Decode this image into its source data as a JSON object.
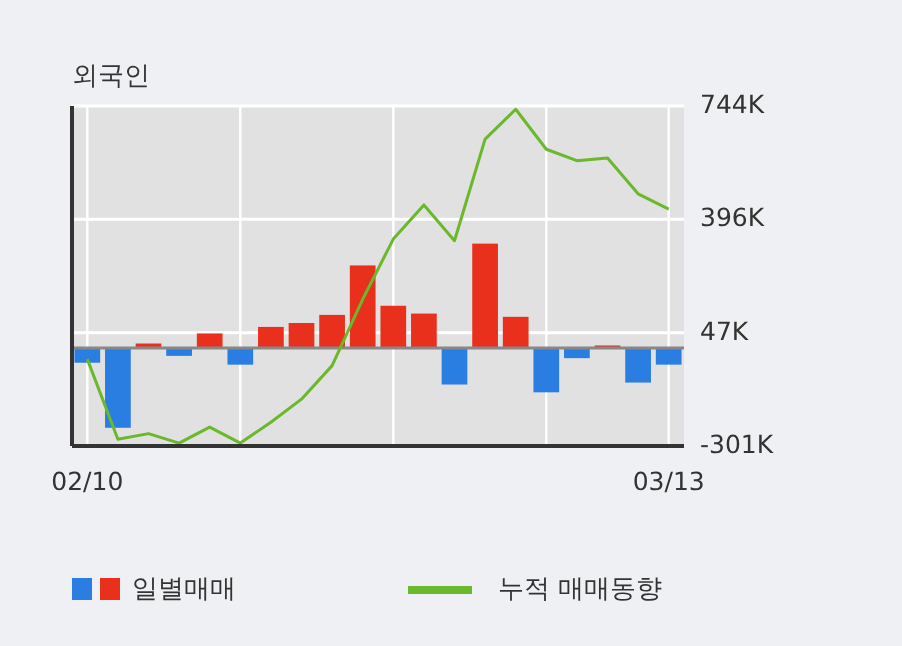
{
  "chart_data": {
    "type": "bar",
    "title": "외국인",
    "categories": [
      "02/10",
      null,
      null,
      null,
      null,
      null,
      null,
      null,
      null,
      null,
      null,
      null,
      null,
      null,
      null,
      null,
      null,
      null,
      null,
      "03/13"
    ],
    "series": [
      {
        "name": "일별매매",
        "colors": [
          "#2a7de1",
          "#2a7de1",
          "#e8301c",
          "#2a7de1",
          "#e8301c",
          "#2a7de1",
          "#e8301c",
          "#e8301c",
          "#e8301c",
          "#e8301c",
          "#e8301c",
          "#e8301c",
          "#2a7de1",
          "#e8301c",
          "#e8301c",
          "#2a7de1",
          "#2a7de1",
          "#e8301c",
          "#2a7de1",
          "#2a7de1"
        ],
        "values": [
          -45,
          -245,
          14,
          -24,
          45,
          -51,
          65,
          77,
          102,
          254,
          130,
          106,
          -112,
          321,
          96,
          -136,
          -31,
          8,
          -106,
          -51
        ]
      },
      {
        "name": "누적 매매동향",
        "type": "line",
        "color": "#6ab82b",
        "values": [
          -34,
          -280,
          -263,
          -292,
          -243,
          -292,
          -228,
          -157,
          -54,
          150,
          335,
          440,
          330,
          642,
          734,
          611,
          576,
          584,
          474,
          427
        ]
      }
    ],
    "ylim": [
      -301,
      744
    ],
    "yticks": [
      {
        "value": 744,
        "label": "744K"
      },
      {
        "value": 396,
        "label": "396K"
      },
      {
        "value": 47,
        "label": "47K"
      },
      {
        "value": -301,
        "label": "-301K"
      }
    ],
    "grid": true,
    "legend": "bottom"
  }
}
